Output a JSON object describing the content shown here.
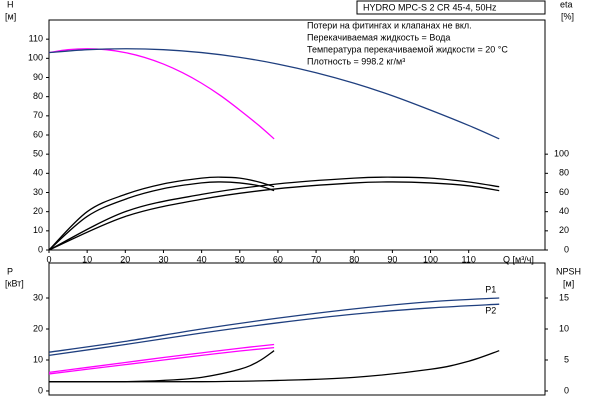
{
  "chart_data": [
    {
      "type": "line",
      "title": "HYDRO MPC-S 2 CR 45-4, 50Hz",
      "annotations": [
        "Потери на фитингах и клапанах не вкл.",
        "Перекачиваемая жидкость = Вода",
        "Температура перекачиваемой жидкости = 20 °C",
        "Плотность = 998.2 кг/м³"
      ],
      "xlabel": "Q [м³/ч]",
      "ylabel": "H",
      "yunit": "[м]",
      "y2label": "eta",
      "y2unit": "[%]",
      "xlim": [
        0,
        130
      ],
      "xticks": [
        0,
        10,
        20,
        30,
        40,
        50,
        60,
        70,
        80,
        90,
        100,
        110
      ],
      "ylim": [
        0,
        120
      ],
      "yticks": [
        0,
        10,
        20,
        30,
        40,
        50,
        60,
        70,
        80,
        90,
        100,
        110
      ],
      "y2lim": [
        0,
        240
      ],
      "y2ticks": [
        0,
        20,
        40,
        60,
        80,
        100
      ],
      "series": [
        {
          "color": "#ff00ff",
          "x": [
            0,
            5,
            10,
            15,
            20,
            25,
            30,
            35,
            40,
            45,
            50,
            55,
            59
          ],
          "values": [
            103,
            104.5,
            105,
            104.5,
            103,
            100.5,
            97,
            92.5,
            87,
            80.5,
            73,
            65,
            58
          ]
        },
        {
          "color": "#1f3f7f",
          "x": [
            0,
            10,
            20,
            30,
            40,
            50,
            60,
            70,
            80,
            90,
            100,
            110,
            118
          ],
          "values": [
            103,
            104.5,
            105,
            104.5,
            103,
            100.5,
            97,
            92.5,
            87,
            80.5,
            73,
            65,
            58
          ]
        },
        {
          "color": "#000000",
          "axis": "y2",
          "x": [
            0,
            10,
            20,
            30,
            40,
            45,
            50,
            55,
            59
          ],
          "values": [
            0,
            40,
            58,
            69,
            75,
            76,
            75,
            71,
            66
          ]
        },
        {
          "color": "#000000",
          "axis": "y2",
          "x": [
            0,
            10,
            20,
            30,
            40,
            45,
            50,
            55,
            59
          ],
          "values": [
            0,
            35,
            53,
            64,
            70,
            71,
            70,
            67,
            62
          ]
        },
        {
          "color": "#000000",
          "axis": "y2",
          "x": [
            0,
            20,
            40,
            60,
            80,
            90,
            100,
            110,
            118
          ],
          "values": [
            0,
            40,
            58,
            69,
            75,
            76,
            75,
            71,
            66
          ]
        },
        {
          "color": "#000000",
          "axis": "y2",
          "x": [
            0,
            20,
            40,
            60,
            80,
            90,
            100,
            110,
            118
          ],
          "values": [
            0,
            35,
            53,
            64,
            70,
            71,
            70,
            67,
            62
          ]
        }
      ]
    },
    {
      "type": "line",
      "ylabel": "P",
      "yunit": "[кВт]",
      "y2label": "NPSH",
      "y2unit": "[м]",
      "xlim": [
        0,
        130
      ],
      "ylim": [
        -1.3,
        41.3
      ],
      "yticks": [
        0,
        10,
        20,
        30
      ],
      "y2lim": [
        -0.65,
        20.65
      ],
      "y2ticks": [
        0,
        5,
        10,
        15
      ],
      "series": [
        {
          "name": "P1",
          "color": "#1f3f7f",
          "x": [
            0,
            20,
            40,
            60,
            80,
            100,
            118
          ],
          "values": [
            12.5,
            16,
            20,
            23.5,
            26.5,
            28.8,
            30
          ]
        },
        {
          "name": "P2",
          "color": "#1f3f7f",
          "x": [
            0,
            20,
            40,
            60,
            80,
            100,
            118
          ],
          "values": [
            11.5,
            15,
            18.7,
            22,
            24.8,
            26.8,
            28
          ]
        },
        {
          "color": "#ff00ff",
          "x": [
            0,
            10,
            20,
            30,
            40,
            50,
            59
          ],
          "values": [
            6,
            7.6,
            9.2,
            10.8,
            12.3,
            13.8,
            15
          ]
        },
        {
          "color": "#ff00ff",
          "x": [
            0,
            10,
            20,
            30,
            40,
            50,
            59
          ],
          "values": [
            5.5,
            7,
            8.5,
            10,
            11.5,
            12.9,
            14
          ]
        },
        {
          "color": "#000000",
          "axis": "y2",
          "x": [
            0,
            20,
            30,
            40,
            50,
            55,
            59
          ],
          "values": [
            1.5,
            1.5,
            1.7,
            2.2,
            3.5,
            4.8,
            6.5
          ]
        },
        {
          "color": "#000000",
          "axis": "y2",
          "x": [
            0,
            40,
            60,
            80,
            100,
            110,
            118
          ],
          "values": [
            1.5,
            1.5,
            1.7,
            2.2,
            3.5,
            4.8,
            6.5
          ]
        }
      ]
    }
  ]
}
